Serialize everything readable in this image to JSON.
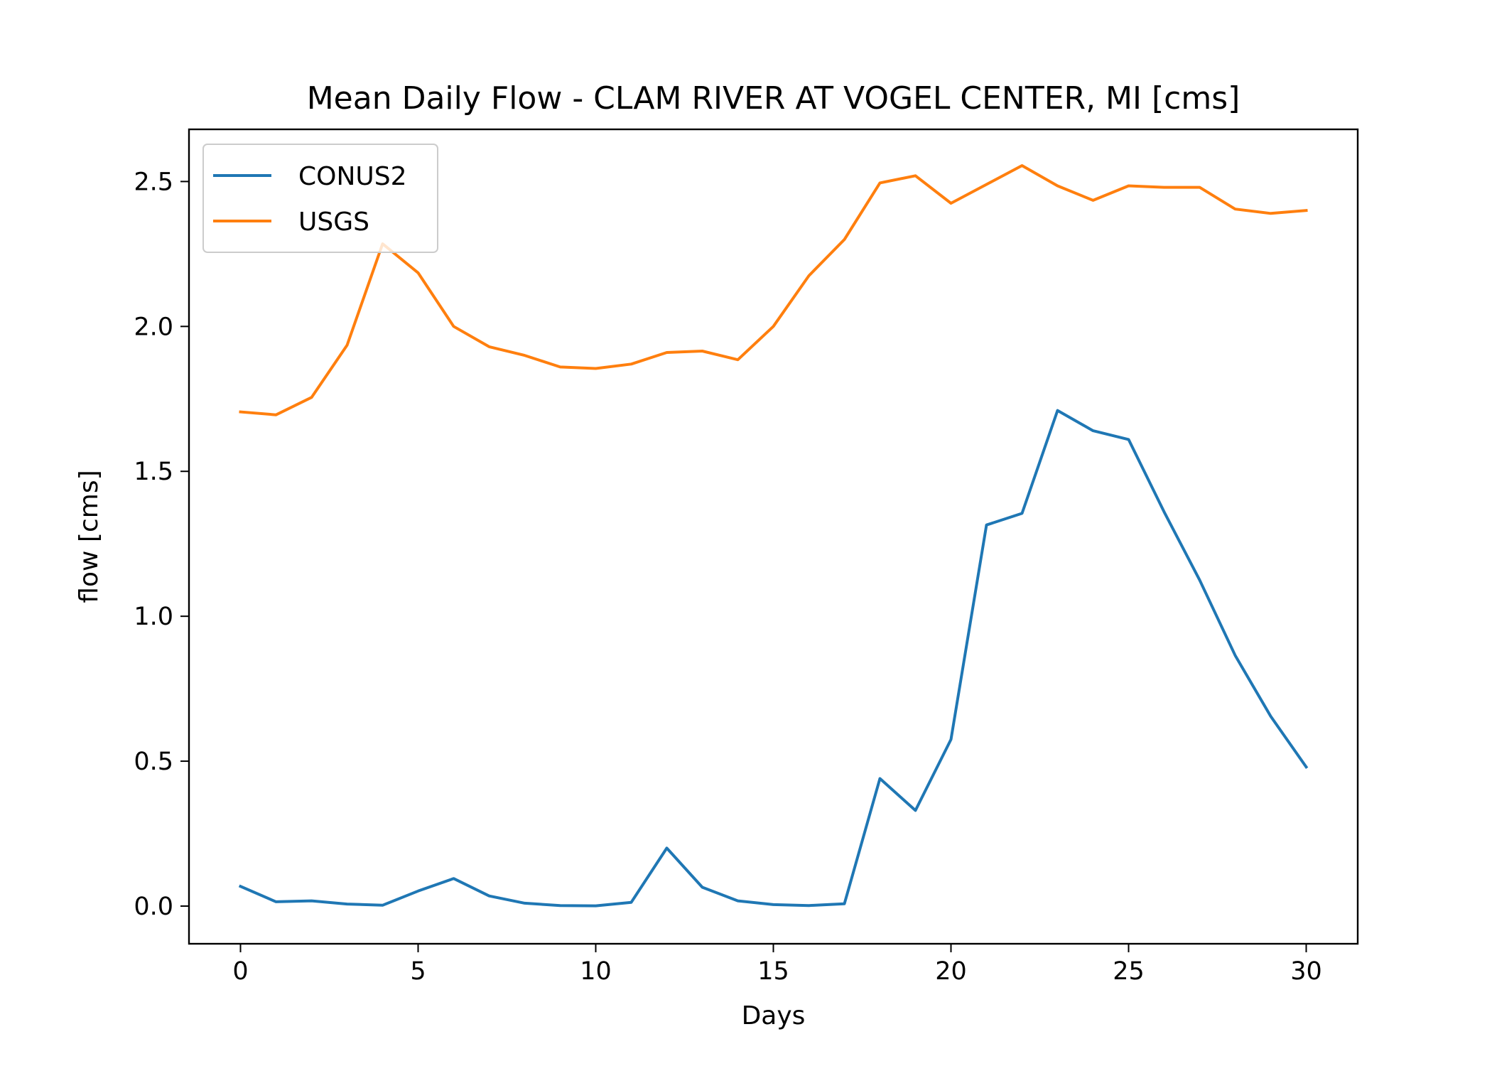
{
  "chart_data": {
    "type": "line",
    "title": "Mean Daily Flow - CLAM RIVER AT VOGEL CENTER, MI [cms]",
    "xlabel": "Days",
    "ylabel": "flow [cms]",
    "xlim": [
      -1.45,
      31.45
    ],
    "ylim": [
      -0.13,
      2.68
    ],
    "xticks": [
      0,
      5,
      10,
      15,
      20,
      25,
      30
    ],
    "xtick_labels": [
      "0",
      "5",
      "10",
      "15",
      "20",
      "25",
      "30"
    ],
    "yticks": [
      0.0,
      0.5,
      1.0,
      1.5,
      2.0,
      2.5
    ],
    "ytick_labels": [
      "0.0",
      "0.5",
      "1.0",
      "1.5",
      "2.0",
      "2.5"
    ],
    "grid": false,
    "legend_position": "upper-left",
    "x": [
      0,
      1,
      2,
      3,
      4,
      5,
      6,
      7,
      8,
      9,
      10,
      11,
      12,
      13,
      14,
      15,
      16,
      17,
      18,
      19,
      20,
      21,
      22,
      23,
      24,
      25,
      26,
      27,
      28,
      29,
      30
    ],
    "series": [
      {
        "name": "CONUS2",
        "color": "#1f77b4",
        "values": [
          0.068,
          0.015,
          0.018,
          0.007,
          0.003,
          0.052,
          0.095,
          0.035,
          0.01,
          0.002,
          0.001,
          0.013,
          0.2,
          0.065,
          0.018,
          0.005,
          0.002,
          0.008,
          0.44,
          0.33,
          0.575,
          1.315,
          1.355,
          1.71,
          1.64,
          1.61,
          1.36,
          1.125,
          0.865,
          0.655,
          0.48
        ]
      },
      {
        "name": "USGS",
        "color": "#ff7f0e",
        "values": [
          1.705,
          1.695,
          1.755,
          1.935,
          2.285,
          2.185,
          2.0,
          1.93,
          1.9,
          1.86,
          1.855,
          1.87,
          1.91,
          1.915,
          1.885,
          2.0,
          2.175,
          2.3,
          2.495,
          2.52,
          2.425,
          2.49,
          2.555,
          2.485,
          2.435,
          2.485,
          2.48,
          2.48,
          2.405,
          2.39,
          2.4
        ]
      }
    ]
  }
}
